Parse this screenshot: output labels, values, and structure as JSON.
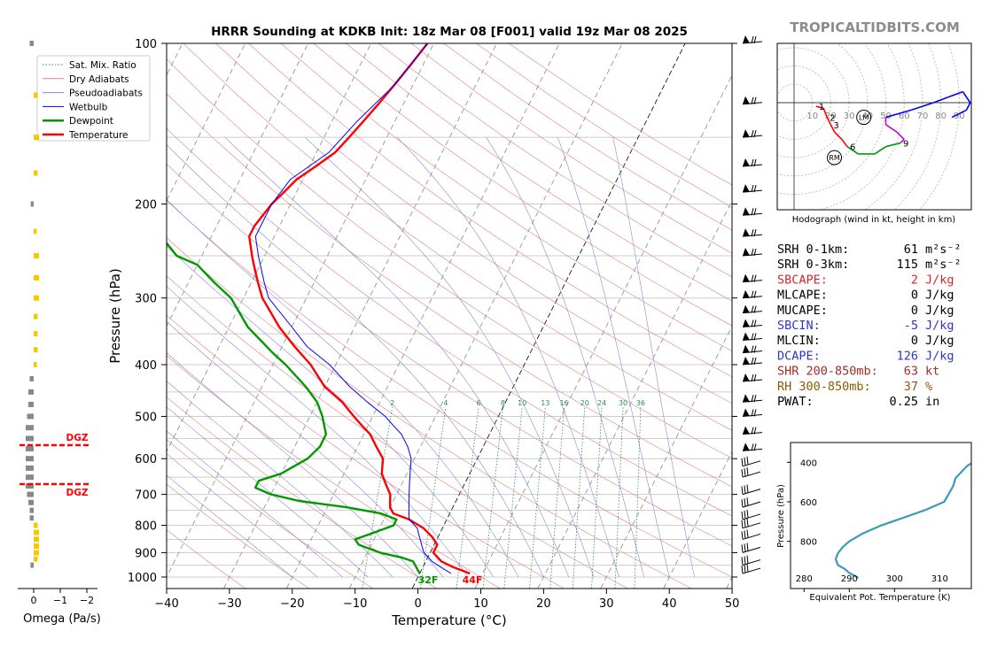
{
  "page": {
    "title": "HRRR Sounding at KDKB Init: 18z Mar 08 [F001] valid 19z Mar 08 2025",
    "watermark": "TROPICALTIDBITS.COM"
  },
  "skewt": {
    "xlabel": "Temperature (°C)",
    "ylabel": "Pressure (hPa)",
    "pressure_ticks": [
      "100",
      "200",
      "300",
      "400",
      "500",
      "600",
      "700",
      "800",
      "900",
      "1000"
    ],
    "temp_ticks": [
      "−40",
      "−30",
      "−20",
      "−10",
      "0",
      "10",
      "20",
      "30",
      "40",
      "50"
    ],
    "surface_temp_label": "44F",
    "surface_dewpoint_label": "32F",
    "mixing_ratio_labels": [
      "2",
      "4",
      "6",
      "8",
      "10",
      "13",
      "16",
      "20",
      "24",
      "30",
      "36"
    ],
    "colors": {
      "temperature": "#ff0000",
      "dewpoint": "#009900",
      "wetbulb": "#0000ff"
    }
  },
  "legend": {
    "items": [
      {
        "label": "Sat. Mix. Ratio",
        "style": "dotted",
        "color": "#2e8b57"
      },
      {
        "label": "Dry Adiabats",
        "style": "solid",
        "color": "#e08080"
      },
      {
        "label": "Pseudoadiabats",
        "style": "solid",
        "color": "#8888dd"
      },
      {
        "label": "Wetbulb",
        "style": "solid",
        "color": "#0000ff"
      },
      {
        "label": "Dewpoint",
        "style": "thick",
        "color": "#009900"
      },
      {
        "label": "Temperature",
        "style": "thick",
        "color": "#ff0000"
      }
    ]
  },
  "omega": {
    "xlabel": "Omega (Pa/s)",
    "ticks": [
      "0",
      "−1",
      "−2"
    ],
    "dgz_label": "DGZ"
  },
  "hodograph": {
    "caption": "Hodograph (wind in kt, height in km)",
    "ring_labels": [
      "10",
      "20",
      "30",
      "40",
      "50",
      "60",
      "70",
      "80",
      "90"
    ],
    "height_labels": [
      "1",
      "2",
      "3",
      "6",
      "9"
    ],
    "lm_label": "LM",
    "rm_label": "RM"
  },
  "indices": [
    {
      "label": "SRH 0-1km:",
      "value": "61",
      "unit": "m²s⁻²",
      "color": "#000000"
    },
    {
      "label": "SRH 0-3km:",
      "value": "115",
      "unit": "m²s⁻²",
      "color": "#000000"
    },
    {
      "label": "SBCAPE:",
      "value": "2",
      "unit": "J/kg",
      "color": "#d62728"
    },
    {
      "label": "MLCAPE:",
      "value": "0",
      "unit": "J/kg",
      "color": "#000000"
    },
    {
      "label": "MUCAPE:",
      "value": "0",
      "unit": "J/kg",
      "color": "#000000"
    },
    {
      "label": "SBCIN:",
      "value": "-5",
      "unit": "J/kg",
      "color": "#3333cc"
    },
    {
      "label": "MLCIN:",
      "value": "0",
      "unit": "J/kg",
      "color": "#000000"
    },
    {
      "label": "DCAPE:",
      "value": "126",
      "unit": "J/kg",
      "color": "#3333cc"
    },
    {
      "label": "SHR 200-850mb:",
      "value": "63",
      "unit": "kt",
      "color": "#a52a2a"
    },
    {
      "label": "RH 300-850mb:",
      "value": "37",
      "unit": "%",
      "color": "#8b5a00"
    },
    {
      "label": "PWAT:",
      "value": "0.25",
      "unit": "in",
      "color": "#000000"
    }
  ],
  "theta_e": {
    "xlabel": "Equivalent Pot. Temperature (K)",
    "ylabel": "Pressure (hPa)",
    "xticks": [
      "280",
      "290",
      "300",
      "310"
    ],
    "yticks": [
      "400",
      "600",
      "800"
    ]
  },
  "chart_data": [
    {
      "type": "line",
      "title": "HRRR Sounding at KDKB Init: 18z Mar 08 [F001] valid 19z Mar 08 2025",
      "xlabel": "Temperature (°C)",
      "ylabel": "Pressure (hPa)",
      "xlim": [
        -40,
        50
      ],
      "ylim": [
        1050,
        100
      ],
      "y_scale": "log",
      "series": [
        {
          "name": "Temperature",
          "p": [
            985,
            960,
            935,
            900,
            870,
            840,
            810,
            800,
            780,
            760,
            740,
            700,
            680,
            660,
            640,
            600,
            570,
            540,
            520,
            500,
            470,
            440,
            400,
            370,
            340,
            300,
            280,
            260,
            250,
            230,
            220,
            200,
            190,
            180,
            170,
            160,
            150,
            140,
            130,
            120,
            110,
            100
          ],
          "t": [
            8,
            5,
            2.5,
            0.5,
            0.5,
            -1,
            -3,
            -4,
            -6,
            -9,
            -10,
            -11,
            -12,
            -13,
            -14,
            -15,
            -17,
            -19,
            -21,
            -23,
            -26,
            -30,
            -34,
            -38,
            -42,
            -47,
            -49,
            -51,
            -52,
            -54,
            -54,
            -53,
            -52,
            -51,
            -49,
            -47,
            -46,
            -45,
            -44,
            -43,
            -42,
            -41
          ]
        },
        {
          "name": "Dewpoint",
          "p": [
            985,
            960,
            935,
            920,
            900,
            870,
            850,
            830,
            800,
            780,
            760,
            740,
            720,
            700,
            680,
            660,
            640,
            600,
            570,
            540,
            520,
            500,
            470,
            440,
            400,
            380,
            340,
            300,
            280,
            260,
            250,
            230,
            220,
            200,
            180,
            160,
            140,
            120,
            110,
            100
          ],
          "t": [
            0,
            -1,
            -2,
            -4,
            -8,
            -12,
            -13,
            -11,
            -8,
            -8,
            -11,
            -17,
            -25,
            -30,
            -33,
            -33,
            -30,
            -27,
            -26,
            -26,
            -27,
            -28,
            -30,
            -33,
            -38,
            -41,
            -47,
            -52,
            -56,
            -60,
            -64,
            -68,
            -71,
            -75,
            -78,
            -82,
            -86,
            -90,
            -92,
            -94
          ]
        },
        {
          "name": "Wetbulb",
          "p": [
            985,
            960,
            935,
            900,
            870,
            840,
            810,
            780,
            740,
            700,
            660,
            620,
            600,
            570,
            540,
            520,
            500,
            470,
            440,
            400,
            370,
            340,
            300,
            280,
            250,
            230,
            200,
            180,
            160,
            140,
            120,
            100
          ],
          "t": [
            5,
            3,
            1,
            -1,
            -2,
            -3,
            -4,
            -6,
            -7,
            -8,
            -9,
            -10,
            -10.5,
            -12,
            -14,
            -16,
            -18,
            -22,
            -26,
            -31,
            -36,
            -40,
            -46,
            -48,
            -51,
            -53,
            -53,
            -52,
            -48,
            -46,
            -43,
            -41
          ]
        }
      ],
      "surface": {
        "temperature_f": 44,
        "dewpoint_f": 32
      }
    },
    {
      "type": "bar",
      "xlabel": "Omega (Pa/s)",
      "xlim": [
        0.5,
        -2.5
      ],
      "ylim": [
        1050,
        100
      ],
      "y_scale": "log",
      "p": [
        100,
        125,
        150,
        175,
        200,
        225,
        250,
        275,
        300,
        325,
        350,
        375,
        400,
        425,
        450,
        475,
        500,
        525,
        550,
        575,
        600,
        625,
        650,
        675,
        700,
        725,
        750,
        775,
        800,
        825,
        850,
        875,
        900,
        925,
        950
      ],
      "values": [
        0.05,
        -0.05,
        -0.1,
        -0.05,
        0.01,
        -0.01,
        -0.1,
        -0.1,
        -0.1,
        -0.05,
        -0.05,
        -0.05,
        -0.02,
        0.05,
        0.1,
        0.1,
        0.15,
        0.2,
        0.2,
        0.2,
        0.2,
        0.2,
        0.2,
        0.2,
        0.15,
        0.1,
        0.05,
        0.05,
        -0.05,
        -0.1,
        -0.1,
        -0.1,
        -0.1,
        -0.05,
        0.02
      ],
      "dgz_top_hpa": 565,
      "dgz_bottom_hpa": 670
    },
    {
      "type": "line",
      "caption": "Hodograph (wind in kt, height in km)",
      "u_kt": [
        12,
        16,
        18,
        20,
        22,
        26,
        29,
        35,
        38,
        44,
        50,
        58,
        60,
        56,
        50,
        50,
        64,
        76,
        84,
        92,
        96,
        94,
        86
      ],
      "v_kt": [
        -2,
        -3,
        -8,
        -12,
        -16,
        -20,
        -24,
        -28,
        -28,
        -28,
        -24,
        -22,
        -20,
        -16,
        -12,
        -8,
        -4,
        0,
        3,
        6,
        0,
        -4,
        -8
      ],
      "height_km": [
        0,
        null,
        1,
        2,
        null,
        null,
        3,
        null,
        null,
        null,
        null,
        6,
        null,
        null,
        9,
        null,
        null,
        null,
        null,
        null,
        null,
        null,
        null
      ],
      "storm_motion": {
        "LM": [
          38,
          -8
        ],
        "RM": [
          22,
          -30
        ]
      }
    },
    {
      "type": "line",
      "xlabel": "Equivalent Pot. Temperature (K)",
      "ylabel": "Pressure (hPa)",
      "xlim": [
        277,
        317
      ],
      "ylim": [
        985,
        300
      ],
      "theta_e_k": [
        292,
        290,
        289,
        287.5,
        287,
        287.5,
        288.5,
        290,
        293,
        297,
        302,
        307,
        311,
        312,
        313,
        313.5,
        316,
        320,
        326
      ],
      "p": [
        985,
        960,
        940,
        920,
        890,
        860,
        830,
        800,
        760,
        720,
        680,
        640,
        600,
        560,
        520,
        480,
        420,
        360,
        300
      ]
    }
  ]
}
